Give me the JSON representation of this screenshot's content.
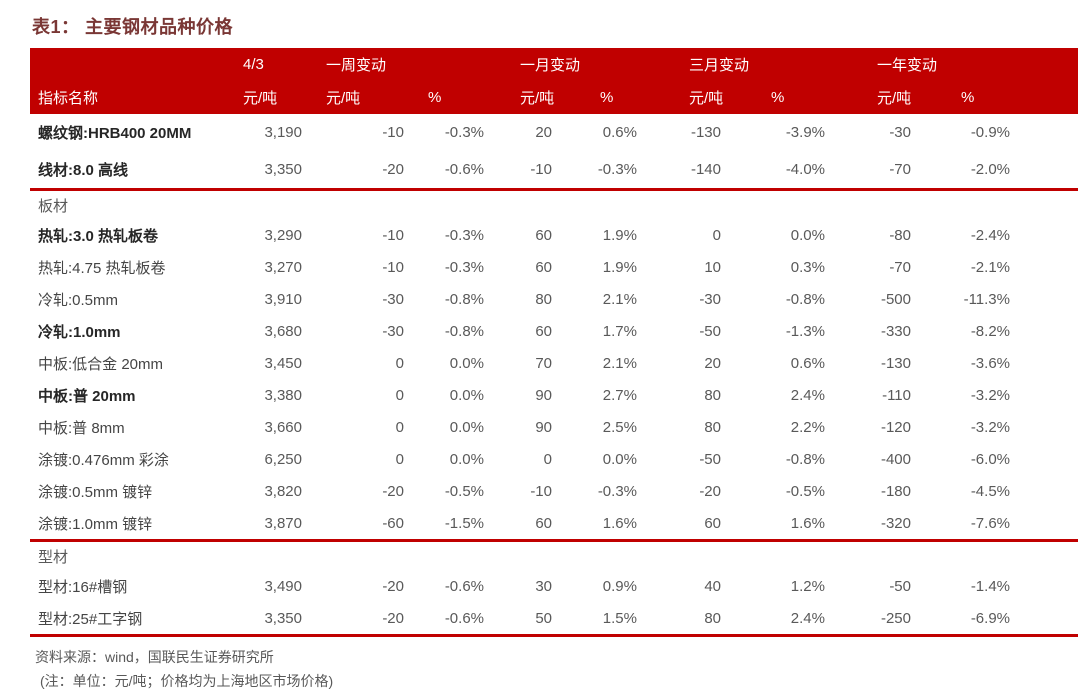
{
  "title": "表1： 主要钢材品种价格",
  "table": {
    "header": {
      "row1": [
        "",
        "4/3",
        "一周变动",
        "",
        "一月变动",
        "",
        "三月变动",
        "",
        "一年变动",
        ""
      ],
      "row2": [
        "指标名称",
        "元/吨",
        "元/吨",
        "%",
        "元/吨",
        "%",
        "元/吨",
        "%",
        "元/吨",
        "%"
      ]
    },
    "sections": [
      {
        "name": "",
        "rows": [
          {
            "label": "螺纹钢:HRB400 20MM",
            "bold": true,
            "values": [
              "3,190",
              "-10",
              "-0.3%",
              "20",
              "0.6%",
              "-130",
              "-3.9%",
              "-30",
              "-0.9%"
            ]
          },
          {
            "label": "线材:8.0 高线",
            "bold": true,
            "values": [
              "3,350",
              "-20",
              "-0.6%",
              "-10",
              "-0.3%",
              "-140",
              "-4.0%",
              "-70",
              "-2.0%"
            ]
          }
        ]
      },
      {
        "name": "板材",
        "rows": [
          {
            "label": "热轧:3.0 热轧板卷",
            "bold": true,
            "values": [
              "3,290",
              "-10",
              "-0.3%",
              "60",
              "1.9%",
              "0",
              "0.0%",
              "-80",
              "-2.4%"
            ]
          },
          {
            "label": "热轧:4.75 热轧板卷",
            "bold": false,
            "values": [
              "3,270",
              "-10",
              "-0.3%",
              "60",
              "1.9%",
              "10",
              "0.3%",
              "-70",
              "-2.1%"
            ]
          },
          {
            "label": "冷轧:0.5mm",
            "bold": false,
            "values": [
              "3,910",
              "-30",
              "-0.8%",
              "80",
              "2.1%",
              "-30",
              "-0.8%",
              "-500",
              "-11.3%"
            ]
          },
          {
            "label": "冷轧:1.0mm",
            "bold": true,
            "values": [
              "3,680",
              "-30",
              "-0.8%",
              "60",
              "1.7%",
              "-50",
              "-1.3%",
              "-330",
              "-8.2%"
            ]
          },
          {
            "label": "中板:低合金 20mm",
            "bold": false,
            "values": [
              "3,450",
              "0",
              "0.0%",
              "70",
              "2.1%",
              "20",
              "0.6%",
              "-130",
              "-3.6%"
            ]
          },
          {
            "label": "中板:普 20mm",
            "bold": true,
            "values": [
              "3,380",
              "0",
              "0.0%",
              "90",
              "2.7%",
              "80",
              "2.4%",
              "-110",
              "-3.2%"
            ]
          },
          {
            "label": "中板:普 8mm",
            "bold": false,
            "values": [
              "3,660",
              "0",
              "0.0%",
              "90",
              "2.5%",
              "80",
              "2.2%",
              "-120",
              "-3.2%"
            ]
          },
          {
            "label": "涂镀:0.476mm 彩涂",
            "bold": false,
            "values": [
              "6,250",
              "0",
              "0.0%",
              "0",
              "0.0%",
              "-50",
              "-0.8%",
              "-400",
              "-6.0%"
            ]
          },
          {
            "label": "涂镀:0.5mm 镀锌",
            "bold": false,
            "values": [
              "3,820",
              "-20",
              "-0.5%",
              "-10",
              "-0.3%",
              "-20",
              "-0.5%",
              "-180",
              "-4.5%"
            ]
          },
          {
            "label": "涂镀:1.0mm 镀锌",
            "bold": false,
            "values": [
              "3,870",
              "-60",
              "-1.5%",
              "60",
              "1.6%",
              "60",
              "1.6%",
              "-320",
              "-7.6%"
            ]
          }
        ]
      },
      {
        "name": "型材",
        "rows": [
          {
            "label": "型材:16#槽钢",
            "bold": false,
            "values": [
              "3,490",
              "-20",
              "-0.6%",
              "30",
              "0.9%",
              "40",
              "1.2%",
              "-50",
              "-1.4%"
            ]
          },
          {
            "label": "型材:25#工字钢",
            "bold": false,
            "values": [
              "3,350",
              "-20",
              "-0.6%",
              "50",
              "1.5%",
              "80",
              "2.4%",
              "-250",
              "-6.9%"
            ]
          }
        ]
      }
    ]
  },
  "footer": {
    "source": "资料来源：wind，国联民生证券研究所",
    "note": "(注：单位：元/吨；价格均为上海地区市场价格)"
  },
  "colors": {
    "header_background": "#c00000",
    "divider": "#c00000",
    "title_text": "#7a3735",
    "header_text": "#ffffff",
    "body_text": "#595959"
  }
}
